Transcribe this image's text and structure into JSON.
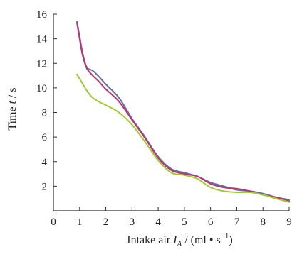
{
  "chart_data": {
    "type": "line",
    "title": "",
    "xlabel": {
      "prefix": "Intake air ",
      "symbol": "I",
      "subscript": "A",
      "unit_open": " / (ml • s",
      "unit_exp": "−1",
      "unit_close": ")"
    },
    "ylabel": {
      "prefix": "Time ",
      "symbol": "t",
      "suffix": " / s"
    },
    "xlim": [
      0,
      9
    ],
    "ylim": [
      0,
      16
    ],
    "xticks": [
      "0",
      "1",
      "2",
      "3",
      "4",
      "5",
      "6",
      "7",
      "8",
      "9"
    ],
    "yticks": [
      "2",
      "4",
      "6",
      "8",
      "10",
      "12",
      "14",
      "16"
    ],
    "grid": false,
    "legend": "none",
    "series": [
      {
        "color": "#5b6fb5",
        "x": [
          0.9,
          1.0,
          1.1,
          1.2,
          1.3,
          1.5,
          1.7,
          2.0,
          2.5,
          3.0,
          3.5,
          4.0,
          4.5,
          5.0,
          5.5,
          6.0,
          6.5,
          7.0,
          7.5,
          8.0,
          8.5,
          9.0
        ],
        "y": [
          15.4,
          14.2,
          13.0,
          12.1,
          11.6,
          11.4,
          11.0,
          10.3,
          9.2,
          7.5,
          6.0,
          4.4,
          3.4,
          3.1,
          2.8,
          2.3,
          2.0,
          1.7,
          1.6,
          1.4,
          1.1,
          0.9
        ]
      },
      {
        "color": "#c2336a",
        "x": [
          0.9,
          1.0,
          1.1,
          1.2,
          1.3,
          1.5,
          1.7,
          2.0,
          2.5,
          3.0,
          3.5,
          4.0,
          4.5,
          5.0,
          5.5,
          6.0,
          6.5,
          7.0,
          7.5,
          8.0,
          8.5,
          9.0
        ],
        "y": [
          15.3,
          14.0,
          12.8,
          12.0,
          11.5,
          11.0,
          10.6,
          9.9,
          8.9,
          7.4,
          5.9,
          4.3,
          3.3,
          3.0,
          2.8,
          2.2,
          1.9,
          1.8,
          1.6,
          1.3,
          1.1,
          0.8
        ]
      },
      {
        "color": "#9acd2e",
        "x": [
          0.9,
          1.1,
          1.3,
          1.5,
          1.8,
          2.0,
          2.5,
          3.0,
          3.5,
          4.0,
          4.5,
          5.0,
          5.5,
          6.0,
          6.5,
          7.0,
          7.5,
          8.0,
          8.5,
          9.0
        ],
        "y": [
          11.1,
          10.4,
          9.7,
          9.2,
          8.8,
          8.6,
          8.0,
          7.0,
          5.6,
          4.1,
          3.1,
          2.9,
          2.6,
          1.9,
          1.6,
          1.5,
          1.5,
          1.3,
          1.0,
          0.7
        ]
      }
    ]
  }
}
